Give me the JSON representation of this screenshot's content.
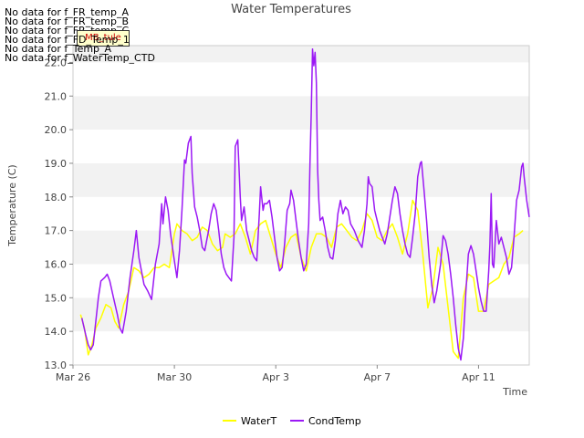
{
  "no_data_messages": [
    "No data for f_FR_temp_A",
    "No data for f_FR_temp_B",
    "No data for f_FR_temp_C",
    "No data for f_FD_Temp_1",
    "No data for f_Temp_A",
    "No data for f_WaterTemp_CTD"
  ],
  "badge_text": "MB_tule",
  "chart_data": {
    "type": "line",
    "title": "Water Temperatures",
    "xlabel": "Time",
    "ylabel": "Temperature (C)",
    "xlim": [
      0,
      18
    ],
    "ylim": [
      13.0,
      22.5
    ],
    "x_ticks": [
      {
        "value": 0,
        "label": "Mar 26"
      },
      {
        "value": 4,
        "label": "Mar 30"
      },
      {
        "value": 8,
        "label": "Apr 3"
      },
      {
        "value": 12,
        "label": "Apr 7"
      },
      {
        "value": 16,
        "label": "Apr 11"
      }
    ],
    "y_ticks": [
      13.0,
      14.0,
      15.0,
      16.0,
      17.0,
      18.0,
      19.0,
      20.0,
      21.0,
      22.0
    ],
    "grid": "horizontal alternating bands",
    "legend_position": "bottom-center",
    "series": [
      {
        "name": "WaterT",
        "color": "#ffff00",
        "points": [
          [
            0.3,
            14.5
          ],
          [
            0.45,
            14.1
          ],
          [
            0.6,
            13.3
          ],
          [
            0.75,
            13.6
          ],
          [
            0.9,
            14.1
          ],
          [
            1.1,
            14.4
          ],
          [
            1.3,
            14.8
          ],
          [
            1.5,
            14.7
          ],
          [
            1.65,
            14.3
          ],
          [
            1.8,
            14.1
          ],
          [
            2.0,
            14.8
          ],
          [
            2.2,
            15.2
          ],
          [
            2.4,
            15.9
          ],
          [
            2.6,
            15.8
          ],
          [
            2.8,
            15.6
          ],
          [
            3.0,
            15.7
          ],
          [
            3.2,
            15.9
          ],
          [
            3.4,
            15.9
          ],
          [
            3.6,
            16.0
          ],
          [
            3.8,
            15.9
          ],
          [
            4.0,
            16.9
          ],
          [
            4.1,
            17.2
          ],
          [
            4.3,
            17.0
          ],
          [
            4.5,
            16.9
          ],
          [
            4.7,
            16.7
          ],
          [
            4.9,
            16.8
          ],
          [
            5.1,
            17.1
          ],
          [
            5.3,
            17.0
          ],
          [
            5.5,
            16.6
          ],
          [
            5.7,
            16.4
          ],
          [
            5.9,
            16.5
          ],
          [
            6.0,
            16.9
          ],
          [
            6.2,
            16.8
          ],
          [
            6.4,
            16.9
          ],
          [
            6.6,
            17.2
          ],
          [
            6.8,
            16.8
          ],
          [
            7.0,
            16.3
          ],
          [
            7.2,
            17.0
          ],
          [
            7.4,
            17.2
          ],
          [
            7.6,
            17.3
          ],
          [
            7.8,
            16.8
          ],
          [
            8.0,
            16.3
          ],
          [
            8.2,
            15.9
          ],
          [
            8.4,
            16.5
          ],
          [
            8.6,
            16.8
          ],
          [
            8.8,
            16.9
          ],
          [
            9.0,
            16.2
          ],
          [
            9.2,
            15.8
          ],
          [
            9.4,
            16.5
          ],
          [
            9.6,
            16.9
          ],
          [
            9.8,
            16.9
          ],
          [
            10.0,
            16.8
          ],
          [
            10.2,
            16.5
          ],
          [
            10.4,
            17.1
          ],
          [
            10.6,
            17.2
          ],
          [
            10.8,
            17.0
          ],
          [
            11.0,
            16.8
          ],
          [
            11.2,
            16.7
          ],
          [
            11.4,
            17.0
          ],
          [
            11.6,
            17.5
          ],
          [
            11.8,
            17.3
          ],
          [
            12.0,
            16.8
          ],
          [
            12.2,
            16.7
          ],
          [
            12.4,
            17.0
          ],
          [
            12.6,
            17.2
          ],
          [
            12.8,
            16.8
          ],
          [
            13.0,
            16.3
          ],
          [
            13.2,
            16.9
          ],
          [
            13.4,
            17.9
          ],
          [
            13.6,
            17.6
          ],
          [
            13.8,
            16.3
          ],
          [
            14.0,
            14.7
          ],
          [
            14.2,
            15.3
          ],
          [
            14.4,
            16.5
          ],
          [
            14.6,
            16.0
          ],
          [
            14.8,
            14.7
          ],
          [
            15.0,
            13.4
          ],
          [
            15.2,
            13.2
          ],
          [
            15.4,
            15.0
          ],
          [
            15.6,
            15.7
          ],
          [
            15.8,
            15.6
          ],
          [
            16.0,
            14.6
          ],
          [
            16.2,
            14.6
          ],
          [
            16.4,
            15.4
          ],
          [
            16.6,
            15.5
          ],
          [
            16.8,
            15.6
          ],
          [
            17.0,
            16.0
          ],
          [
            17.2,
            16.2
          ],
          [
            17.4,
            16.8
          ],
          [
            17.6,
            16.9
          ],
          [
            17.75,
            17.0
          ]
        ]
      },
      {
        "name": "CondTemp",
        "color": "#9b19f5",
        "points": [
          [
            0.35,
            14.4
          ],
          [
            0.5,
            13.9
          ],
          [
            0.6,
            13.6
          ],
          [
            0.7,
            13.45
          ],
          [
            0.8,
            13.6
          ],
          [
            0.9,
            14.3
          ],
          [
            1.0,
            15.0
          ],
          [
            1.1,
            15.5
          ],
          [
            1.25,
            15.6
          ],
          [
            1.35,
            15.7
          ],
          [
            1.45,
            15.5
          ],
          [
            1.6,
            15.0
          ],
          [
            1.75,
            14.5
          ],
          [
            1.85,
            14.1
          ],
          [
            1.95,
            13.95
          ],
          [
            2.1,
            14.6
          ],
          [
            2.25,
            15.6
          ],
          [
            2.4,
            16.4
          ],
          [
            2.5,
            17.0
          ],
          [
            2.6,
            16.2
          ],
          [
            2.7,
            15.8
          ],
          [
            2.8,
            15.4
          ],
          [
            2.95,
            15.2
          ],
          [
            3.1,
            14.95
          ],
          [
            3.25,
            16.0
          ],
          [
            3.4,
            16.6
          ],
          [
            3.5,
            17.8
          ],
          [
            3.55,
            17.2
          ],
          [
            3.65,
            18.0
          ],
          [
            3.75,
            17.6
          ],
          [
            3.85,
            16.9
          ],
          [
            4.0,
            16.1
          ],
          [
            4.1,
            15.6
          ],
          [
            4.2,
            16.4
          ],
          [
            4.3,
            17.6
          ],
          [
            4.4,
            19.1
          ],
          [
            4.45,
            19.0
          ],
          [
            4.55,
            19.6
          ],
          [
            4.65,
            19.8
          ],
          [
            4.7,
            18.7
          ],
          [
            4.8,
            17.7
          ],
          [
            4.9,
            17.4
          ],
          [
            5.0,
            17.0
          ],
          [
            5.1,
            16.5
          ],
          [
            5.2,
            16.4
          ],
          [
            5.35,
            17.0
          ],
          [
            5.45,
            17.5
          ],
          [
            5.55,
            17.8
          ],
          [
            5.65,
            17.6
          ],
          [
            5.75,
            17.0
          ],
          [
            5.85,
            16.3
          ],
          [
            5.95,
            15.9
          ],
          [
            6.05,
            15.7
          ],
          [
            6.15,
            15.6
          ],
          [
            6.25,
            15.5
          ],
          [
            6.35,
            16.8
          ],
          [
            6.4,
            19.5
          ],
          [
            6.5,
            19.7
          ],
          [
            6.6,
            18.0
          ],
          [
            6.65,
            17.3
          ],
          [
            6.75,
            17.7
          ],
          [
            6.85,
            17.0
          ],
          [
            6.95,
            16.7
          ],
          [
            7.05,
            16.4
          ],
          [
            7.15,
            16.2
          ],
          [
            7.25,
            16.1
          ],
          [
            7.35,
            17.5
          ],
          [
            7.4,
            18.3
          ],
          [
            7.5,
            17.6
          ],
          [
            7.55,
            17.8
          ],
          [
            7.65,
            17.8
          ],
          [
            7.75,
            17.9
          ],
          [
            7.85,
            17.4
          ],
          [
            7.95,
            16.8
          ],
          [
            8.05,
            16.2
          ],
          [
            8.15,
            15.8
          ],
          [
            8.25,
            15.9
          ],
          [
            8.35,
            16.6
          ],
          [
            8.45,
            17.6
          ],
          [
            8.55,
            17.8
          ],
          [
            8.6,
            18.2
          ],
          [
            8.7,
            17.9
          ],
          [
            8.8,
            17.3
          ],
          [
            8.9,
            16.7
          ],
          [
            9.0,
            16.2
          ],
          [
            9.1,
            15.8
          ],
          [
            9.2,
            16.0
          ],
          [
            9.3,
            17.2
          ],
          [
            9.35,
            19.0
          ],
          [
            9.4,
            20.5
          ],
          [
            9.45,
            22.4
          ],
          [
            9.5,
            21.9
          ],
          [
            9.55,
            22.3
          ],
          [
            9.6,
            21.4
          ],
          [
            9.65,
            18.8
          ],
          [
            9.7,
            17.9
          ],
          [
            9.75,
            17.3
          ],
          [
            9.85,
            17.4
          ],
          [
            9.95,
            17.0
          ],
          [
            10.05,
            16.5
          ],
          [
            10.15,
            16.2
          ],
          [
            10.25,
            16.15
          ],
          [
            10.35,
            16.7
          ],
          [
            10.45,
            17.5
          ],
          [
            10.55,
            17.9
          ],
          [
            10.65,
            17.5
          ],
          [
            10.75,
            17.7
          ],
          [
            10.85,
            17.6
          ],
          [
            10.95,
            17.2
          ],
          [
            11.1,
            17.0
          ],
          [
            11.25,
            16.7
          ],
          [
            11.4,
            16.5
          ],
          [
            11.5,
            17.0
          ],
          [
            11.6,
            17.8
          ],
          [
            11.65,
            18.6
          ],
          [
            11.7,
            18.4
          ],
          [
            11.8,
            18.3
          ],
          [
            11.9,
            17.6
          ],
          [
            12.0,
            17.3
          ],
          [
            12.1,
            17.0
          ],
          [
            12.2,
            16.8
          ],
          [
            12.3,
            16.6
          ],
          [
            12.4,
            16.9
          ],
          [
            12.5,
            17.4
          ],
          [
            12.6,
            17.9
          ],
          [
            12.7,
            18.3
          ],
          [
            12.8,
            18.1
          ],
          [
            12.9,
            17.5
          ],
          [
            13.0,
            17.0
          ],
          [
            13.1,
            16.6
          ],
          [
            13.2,
            16.3
          ],
          [
            13.3,
            16.2
          ],
          [
            13.4,
            16.8
          ],
          [
            13.5,
            17.5
          ],
          [
            13.6,
            18.6
          ],
          [
            13.7,
            19.0
          ],
          [
            13.75,
            19.05
          ],
          [
            13.85,
            18.2
          ],
          [
            13.95,
            17.3
          ],
          [
            14.05,
            16.2
          ],
          [
            14.15,
            15.4
          ],
          [
            14.25,
            14.85
          ],
          [
            14.35,
            15.2
          ],
          [
            14.5,
            16.0
          ],
          [
            14.6,
            16.85
          ],
          [
            14.7,
            16.7
          ],
          [
            14.8,
            16.3
          ],
          [
            14.9,
            15.7
          ],
          [
            15.0,
            15.0
          ],
          [
            15.1,
            14.2
          ],
          [
            15.2,
            13.5
          ],
          [
            15.3,
            13.15
          ],
          [
            15.4,
            13.8
          ],
          [
            15.5,
            15.2
          ],
          [
            15.6,
            16.3
          ],
          [
            15.7,
            16.55
          ],
          [
            15.8,
            16.3
          ],
          [
            15.9,
            15.8
          ],
          [
            16.0,
            15.3
          ],
          [
            16.1,
            14.9
          ],
          [
            16.2,
            14.6
          ],
          [
            16.3,
            14.6
          ],
          [
            16.4,
            15.8
          ],
          [
            16.45,
            16.6
          ],
          [
            16.5,
            18.1
          ],
          [
            16.55,
            16.0
          ],
          [
            16.6,
            15.9
          ],
          [
            16.65,
            16.6
          ],
          [
            16.7,
            17.3
          ],
          [
            16.8,
            16.6
          ],
          [
            16.9,
            16.8
          ],
          [
            17.0,
            16.5
          ],
          [
            17.1,
            16.2
          ],
          [
            17.2,
            15.7
          ],
          [
            17.3,
            15.9
          ],
          [
            17.4,
            16.8
          ],
          [
            17.5,
            17.9
          ],
          [
            17.6,
            18.2
          ],
          [
            17.7,
            18.9
          ],
          [
            17.75,
            19.0
          ],
          [
            17.8,
            18.6
          ],
          [
            17.9,
            17.9
          ],
          [
            18.0,
            17.4
          ]
        ]
      }
    ]
  }
}
